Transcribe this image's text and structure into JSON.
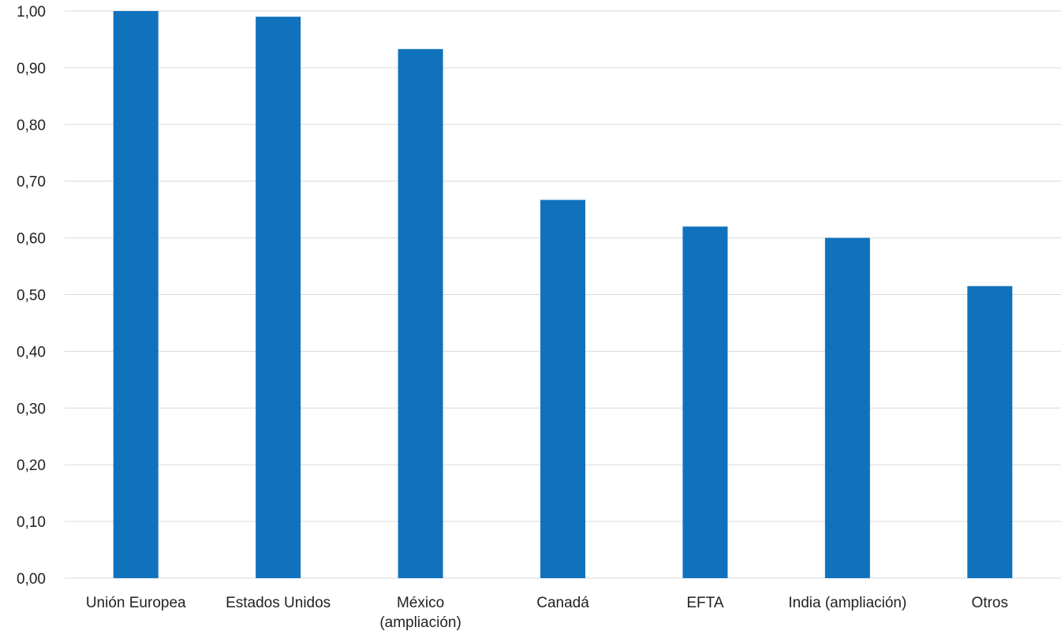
{
  "chart_data": {
    "type": "bar",
    "categories": [
      [
        "Unión Europea"
      ],
      [
        "Estados Unidos"
      ],
      [
        "México",
        "(ampliación)"
      ],
      [
        "Canadá"
      ],
      [
        "EFTA"
      ],
      [
        "India (ampliación)"
      ],
      [
        "Otros"
      ]
    ],
    "values": [
      1.0,
      0.99,
      0.933,
      0.667,
      0.62,
      0.6,
      0.515
    ],
    "ylim": [
      0,
      1
    ],
    "yticks": [
      "0,00",
      "0,10",
      "0,20",
      "0,30",
      "0,40",
      "0,50",
      "0,60",
      "0,70",
      "0,80",
      "0,90",
      "1,00"
    ],
    "grid": true,
    "legend": "none",
    "bar_color": "#1072BD",
    "grid_color": "#D9D9D9"
  }
}
